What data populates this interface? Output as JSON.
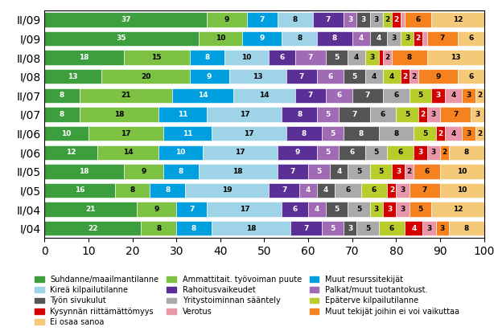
{
  "chart_data": {
    "type": "bar",
    "orientation": "horizontal",
    "stacked": true,
    "data_labels": true,
    "legend": "lower center",
    "categories": [
      "II/09",
      "I/09",
      "II/08",
      "I/08",
      "II/07",
      "I/07",
      "II/06",
      "I/06",
      "II/05",
      "I/05",
      "II/04",
      "I/04"
    ],
    "xlim": [
      0,
      100
    ],
    "xticks": [
      0,
      10,
      20,
      30,
      40,
      50,
      60,
      70,
      80,
      90,
      100
    ],
    "series": [
      {
        "name": "Suhdanne/maailmantilanne",
        "color": "#3d9e3d",
        "values": [
          37,
          35,
          18,
          13,
          8,
          8,
          10,
          12,
          18,
          16,
          21,
          22
        ],
        "value_labels": [
          "37",
          "35",
          "18",
          "13",
          "8",
          "8",
          "10",
          "12",
          "18",
          "16",
          "21",
          "22"
        ]
      },
      {
        "name": "Ammattitait. työvoiman puute",
        "color": "#7dc242",
        "values": [
          9,
          10,
          15,
          20,
          21,
          18,
          17,
          14,
          9,
          8,
          9,
          8
        ],
        "value_labels": [
          "9",
          "10",
          "15",
          "20",
          "21",
          "18",
          "17",
          "14",
          "9",
          "8",
          "9",
          "8"
        ]
      },
      {
        "name": "Muut resurssitekijät",
        "color": "#00a0e0",
        "values": [
          7,
          9,
          8,
          9,
          14,
          11,
          11,
          10,
          8,
          8,
          7,
          8
        ],
        "value_labels": [
          "7",
          "9",
          "8",
          "9",
          "14",
          "11",
          "11",
          "10",
          "8",
          "8",
          "7",
          "8"
        ]
      },
      {
        "name": "Kireä kilpailutilanne",
        "color": "#9fd4e8",
        "values": [
          8,
          8,
          10,
          13,
          14,
          17,
          17,
          17,
          18,
          19,
          17,
          18
        ],
        "value_labels": [
          "8",
          "8",
          "10",
          "13",
          "14",
          "17",
          "17",
          "17",
          "18",
          "19",
          "17",
          "18"
        ]
      },
      {
        "name": "Rahoitusvaikeudet",
        "color": "#5b3096",
        "values": [
          7,
          8,
          6,
          7,
          7,
          8,
          8,
          9,
          7,
          7,
          6,
          7
        ],
        "value_labels": [
          "7",
          "8",
          "6",
          "7",
          "7",
          "8",
          "8",
          "9",
          "7",
          "7",
          "6",
          "7"
        ]
      },
      {
        "name": "Palkat/muut tuotantokust.",
        "color": "#a06ab4",
        "values": [
          3,
          4,
          7,
          6,
          6,
          5,
          5,
          5,
          5,
          4,
          4,
          5
        ],
        "value_labels": [
          "3",
          "4",
          "7",
          "6",
          "6",
          "5",
          "5",
          "5",
          "5",
          "4",
          "4",
          "5"
        ]
      },
      {
        "name": "Työn sivukulut",
        "color": "#555555",
        "values": [
          3,
          4,
          5,
          5,
          7,
          7,
          8,
          6,
          4,
          4,
          5,
          3
        ],
        "value_labels": [
          "3",
          "4",
          "5",
          "5",
          "7",
          "7",
          "8",
          "6",
          "4",
          "4",
          "5",
          "3"
        ]
      },
      {
        "name": "Yritystoiminnan sääntely",
        "color": "#aaaaaa",
        "values": [
          3,
          3,
          4,
          4,
          6,
          6,
          8,
          5,
          5,
          6,
          5,
          5
        ],
        "value_labels": [
          "3",
          "3",
          "4",
          "4",
          "6",
          "6",
          "8",
          "5",
          "5",
          "6",
          "5",
          "5"
        ]
      },
      {
        "name": "Epäterve kilpailutilanne",
        "color": "#b8cc2c",
        "values": [
          2,
          3,
          3,
          4,
          5,
          5,
          5,
          6,
          5,
          6,
          3,
          6
        ],
        "value_labels": [
          "2",
          "3",
          "3",
          "4",
          "5",
          "5",
          "5",
          "6",
          "5",
          "6",
          "3",
          "6"
        ]
      },
      {
        "name": "Kysynnän riittämättömyys",
        "color": "#d40000",
        "values": [
          2,
          2,
          1,
          2,
          3,
          2,
          2,
          3,
          3,
          2,
          3,
          4
        ],
        "value_labels": [
          "2",
          "2",
          null,
          "2",
          "3",
          "2",
          "2",
          "3",
          "3",
          "2",
          "3",
          "4"
        ]
      },
      {
        "name": "Verotus",
        "color": "#e896a8",
        "values": [
          1,
          1,
          2,
          2,
          4,
          3,
          4,
          3,
          2,
          3,
          3,
          3
        ],
        "value_labels": [
          null,
          null,
          "2",
          "2",
          "4",
          "3",
          "4",
          "3",
          "2",
          "3",
          "3",
          "3"
        ]
      },
      {
        "name": "Muut tekijät joihin ei voi vaikuttaa",
        "color": "#f5821f",
        "values": [
          6,
          7,
          8,
          9,
          3,
          7,
          3,
          2,
          6,
          7,
          5,
          3
        ],
        "value_labels": [
          "6",
          "7",
          "8",
          "9",
          "3",
          "7",
          "3",
          "2",
          "6",
          "7",
          "5",
          "3"
        ]
      },
      {
        "name": "Ei osaa sanoa",
        "color": "#f5c97a",
        "values": [
          12,
          6,
          13,
          6,
          2,
          3,
          2,
          8,
          10,
          10,
          12,
          8
        ],
        "value_labels": [
          "12",
          "6",
          "13",
          "6",
          "2",
          "3",
          "2",
          "8",
          "10",
          "10",
          "12",
          "8"
        ]
      }
    ]
  }
}
